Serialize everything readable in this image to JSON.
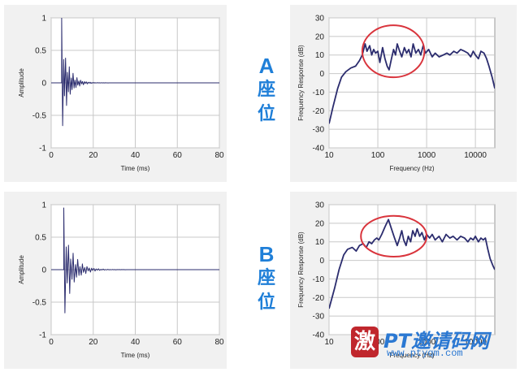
{
  "labels": {
    "seat_a": {
      "letter": "A",
      "word": "座位"
    },
    "seat_b": {
      "letter": "B",
      "word": "座位"
    }
  },
  "watermark": {
    "badge": "激",
    "text": "PT邀请码网",
    "url": "www.ptyqm.com"
  },
  "chart_data": [
    {
      "id": "impulse-a",
      "type": "line",
      "xlabel": "Time (ms)",
      "ylabel": "Amplitude",
      "xlim": [
        0,
        80
      ],
      "ylim": [
        -1,
        1
      ],
      "xticks": [
        0,
        20,
        40,
        60,
        80
      ],
      "yticks": [
        -1,
        -0.5,
        0,
        0.5,
        1
      ],
      "ytick_labels": [
        "-1",
        "-0.5",
        "0",
        "0.5",
        "1"
      ],
      "grid": true,
      "color": "#2b2c6e",
      "decay": {
        "onset_ms": 5,
        "peak_pos": 1.0,
        "peak_neg": -0.95,
        "tau_ms": 3.2,
        "ring_period_ms": 0.9,
        "end_ms": 35
      }
    },
    {
      "id": "freq-a",
      "type": "line",
      "xscale": "log",
      "xlabel": "Frequency (Hz)",
      "ylabel": "Frequency Response (dB)",
      "xlim": [
        10,
        25000
      ],
      "ylim": [
        -40,
        30
      ],
      "xticks": [
        10,
        100,
        1000,
        10000
      ],
      "yticks": [
        -40,
        -30,
        -20,
        -10,
        0,
        10,
        20,
        30
      ],
      "grid": true,
      "color": "#2b2c6e",
      "highlight_ellipse": {
        "center_hz": 200,
        "center_db": 12,
        "hz_range": [
          48,
          900
        ],
        "db_range": [
          -2,
          26
        ],
        "color": "#d9343c"
      },
      "points": [
        [
          10,
          -27
        ],
        [
          12,
          -18
        ],
        [
          15,
          -8
        ],
        [
          18,
          -2
        ],
        [
          22,
          1
        ],
        [
          28,
          3
        ],
        [
          35,
          4
        ],
        [
          42,
          7
        ],
        [
          48,
          10
        ],
        [
          55,
          16
        ],
        [
          60,
          12
        ],
        [
          68,
          15
        ],
        [
          75,
          10
        ],
        [
          82,
          13
        ],
        [
          90,
          11
        ],
        [
          100,
          12
        ],
        [
          110,
          6
        ],
        [
          125,
          14
        ],
        [
          140,
          8
        ],
        [
          155,
          4
        ],
        [
          170,
          2
        ],
        [
          190,
          8
        ],
        [
          210,
          13
        ],
        [
          230,
          10
        ],
        [
          250,
          16
        ],
        [
          280,
          12
        ],
        [
          310,
          9
        ],
        [
          350,
          14
        ],
        [
          390,
          11
        ],
        [
          430,
          13
        ],
        [
          480,
          9
        ],
        [
          530,
          16
        ],
        [
          600,
          11
        ],
        [
          680,
          13
        ],
        [
          760,
          10
        ],
        [
          850,
          15
        ],
        [
          950,
          11
        ],
        [
          1100,
          13
        ],
        [
          1300,
          9
        ],
        [
          1500,
          11
        ],
        [
          1800,
          9
        ],
        [
          2200,
          10
        ],
        [
          2600,
          11
        ],
        [
          3000,
          10
        ],
        [
          3600,
          12
        ],
        [
          4200,
          11
        ],
        [
          5000,
          13
        ],
        [
          6000,
          12
        ],
        [
          7000,
          11
        ],
        [
          8000,
          9
        ],
        [
          9000,
          12
        ],
        [
          10000,
          10
        ],
        [
          11500,
          8
        ],
        [
          13000,
          12
        ],
        [
          15000,
          11
        ],
        [
          17000,
          8
        ],
        [
          19000,
          4
        ],
        [
          22000,
          -2
        ],
        [
          25000,
          -8
        ]
      ]
    },
    {
      "id": "impulse-b",
      "type": "line",
      "xlabel": "Time (ms)",
      "ylabel": "Amplitude",
      "xlim": [
        0,
        80
      ],
      "ylim": [
        -1,
        1
      ],
      "xticks": [
        0,
        20,
        40,
        60,
        80
      ],
      "yticks": [
        -1,
        -0.5,
        0,
        0.5,
        1
      ],
      "ytick_labels": [
        "-1",
        "-0.5",
        "0",
        "0.5",
        "1"
      ],
      "grid": true,
      "color": "#2b2c6e",
      "decay": {
        "onset_ms": 6,
        "peak_pos": 0.95,
        "peak_neg": -0.95,
        "tau_ms": 4.2,
        "ring_period_ms": 1.1,
        "end_ms": 38
      }
    },
    {
      "id": "freq-b",
      "type": "line",
      "xscale": "log",
      "xlabel": "Frequency (Hz)",
      "ylabel": "Frequency Response (dB)",
      "xlim": [
        10,
        25000
      ],
      "ylim": [
        -40,
        30
      ],
      "xticks": [
        10,
        100,
        1000,
        10000
      ],
      "yticks": [
        -40,
        -30,
        -20,
        -10,
        0,
        10,
        20,
        30
      ],
      "grid": true,
      "color": "#2b2c6e",
      "highlight_ellipse": {
        "center_hz": 220,
        "center_db": 12,
        "hz_range": [
          45,
          1000
        ],
        "db_range": [
          2,
          24
        ],
        "color": "#d9343c"
      },
      "points": [
        [
          10,
          -26
        ],
        [
          13,
          -15
        ],
        [
          16,
          -5
        ],
        [
          20,
          3
        ],
        [
          24,
          6
        ],
        [
          30,
          7
        ],
        [
          36,
          5
        ],
        [
          42,
          8
        ],
        [
          50,
          9
        ],
        [
          58,
          7
        ],
        [
          66,
          10
        ],
        [
          75,
          9
        ],
        [
          85,
          11
        ],
        [
          95,
          12
        ],
        [
          105,
          11
        ],
        [
          120,
          14
        ],
        [
          140,
          18
        ],
        [
          165,
          22
        ],
        [
          190,
          17
        ],
        [
          220,
          12
        ],
        [
          250,
          8
        ],
        [
          280,
          12
        ],
        [
          310,
          16
        ],
        [
          340,
          11
        ],
        [
          380,
          8
        ],
        [
          420,
          13
        ],
        [
          470,
          10
        ],
        [
          520,
          16
        ],
        [
          580,
          13
        ],
        [
          640,
          17
        ],
        [
          720,
          13
        ],
        [
          800,
          15
        ],
        [
          900,
          11
        ],
        [
          1000,
          14
        ],
        [
          1150,
          12
        ],
        [
          1300,
          14
        ],
        [
          1500,
          11
        ],
        [
          1800,
          13
        ],
        [
          2100,
          10
        ],
        [
          2500,
          14
        ],
        [
          3000,
          12
        ],
        [
          3500,
          13
        ],
        [
          4200,
          11
        ],
        [
          5000,
          13
        ],
        [
          6000,
          12
        ],
        [
          7000,
          10
        ],
        [
          8000,
          12
        ],
        [
          9000,
          11
        ],
        [
          10000,
          13
        ],
        [
          11500,
          10
        ],
        [
          13000,
          12
        ],
        [
          14500,
          11
        ],
        [
          16000,
          12
        ],
        [
          18000,
          6
        ],
        [
          20000,
          1
        ],
        [
          23000,
          -3
        ],
        [
          25000,
          -5
        ]
      ]
    }
  ]
}
